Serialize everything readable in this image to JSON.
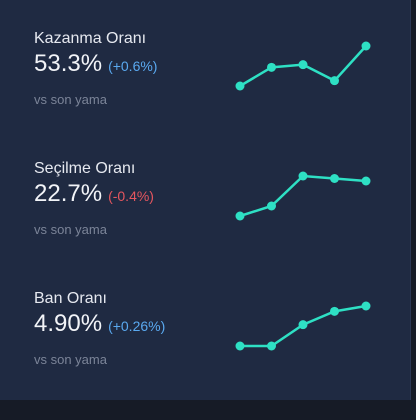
{
  "accent_color": "#2ee0c4",
  "stats": [
    {
      "title": "Kazanma Oranı",
      "value": "53.3%",
      "change": "(+0.6%)",
      "direction": "up",
      "subtitle": "vs son yama",
      "trend": [
        53.1,
        53.8,
        53.9,
        53.3,
        54.6
      ]
    },
    {
      "title": "Seçilme Oranı",
      "value": "22.7%",
      "change": "(-0.4%)",
      "direction": "down",
      "subtitle": "vs son yama",
      "trend": [
        22.5,
        22.9,
        24.1,
        24.0,
        23.9
      ]
    },
    {
      "title": "Ban Oranı",
      "value": "4.90%",
      "change": "(+0.26%)",
      "direction": "up",
      "subtitle": "vs son yama",
      "trend": [
        4.2,
        4.2,
        4.6,
        4.85,
        4.95
      ]
    }
  ]
}
